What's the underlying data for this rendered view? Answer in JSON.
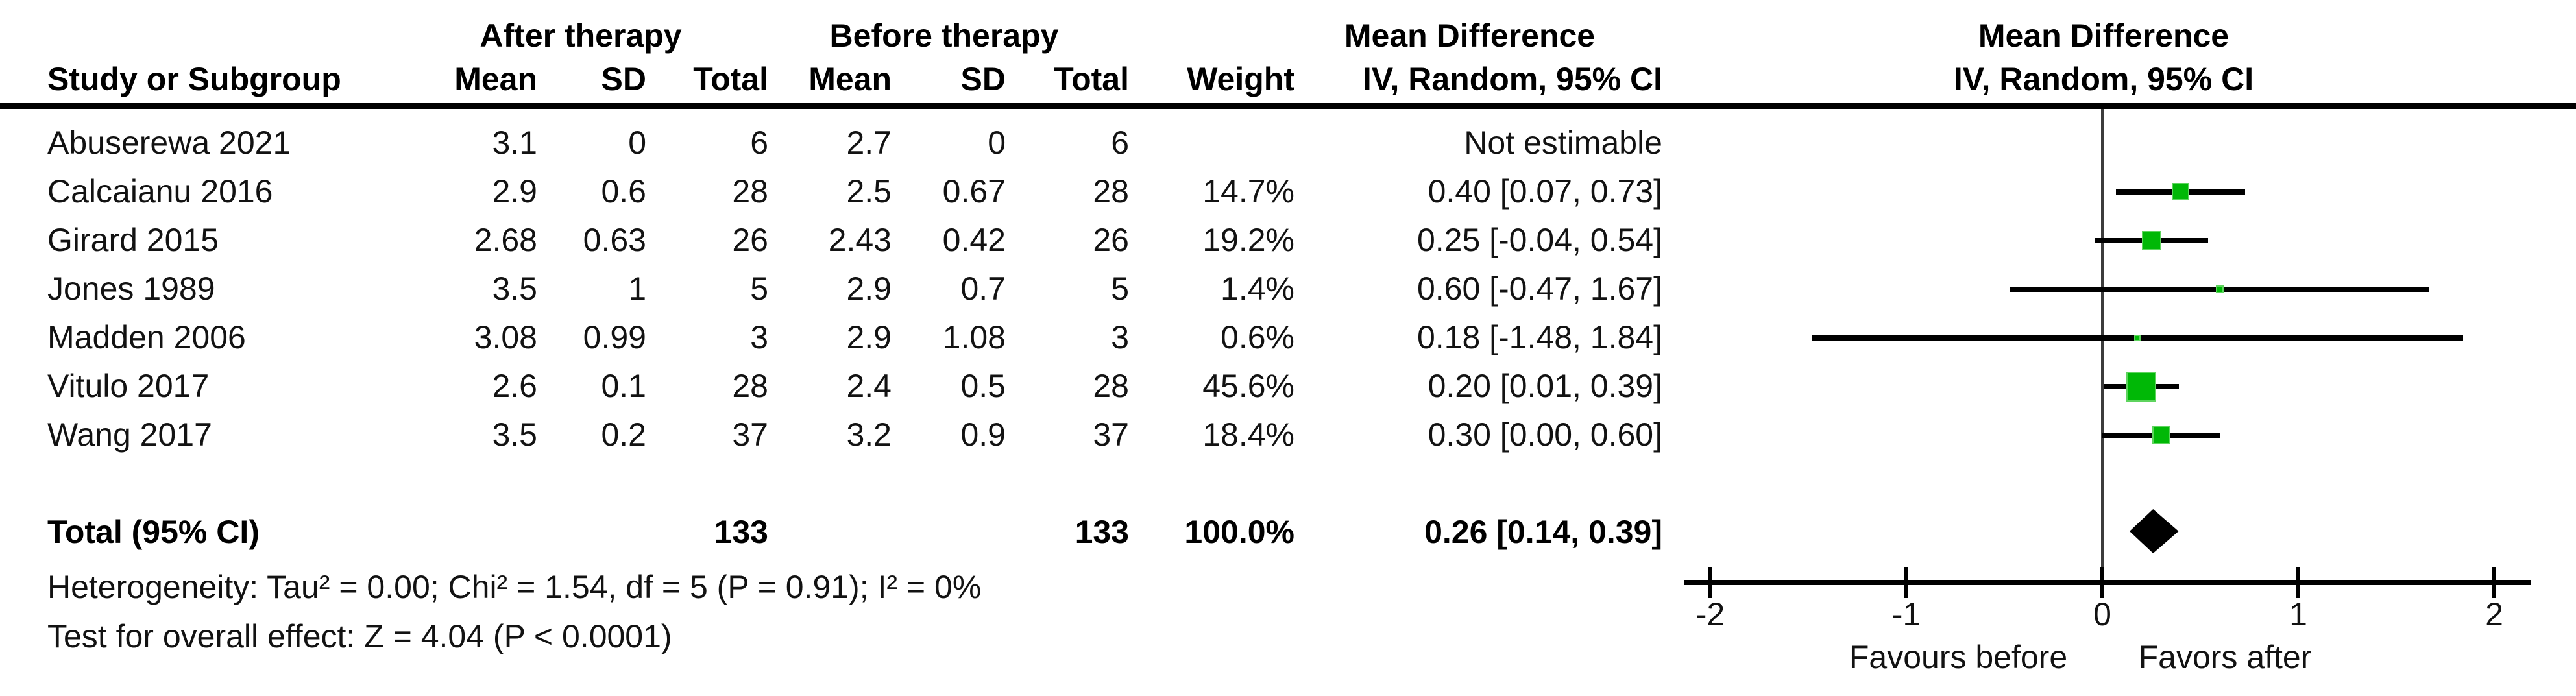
{
  "header": {
    "study_col": "Study or Subgroup",
    "group_after": "After therapy",
    "group_before": "Before therapy",
    "md_col_title": "Mean Difference",
    "md_col_sub": "IV, Random, 95% CI",
    "plot_title": "Mean Difference",
    "plot_sub": "IV, Random, 95% CI",
    "sub_cols": [
      "Mean",
      "SD",
      "Total",
      "Mean",
      "SD",
      "Total",
      "Weight"
    ]
  },
  "studies": [
    {
      "name": "Abuserewa 2021",
      "after_mean": "3.1",
      "after_sd": "0",
      "after_total": "6",
      "before_mean": "2.7",
      "before_sd": "0",
      "before_total": "6",
      "weight": "",
      "ci_text": "Not estimable",
      "estimable": false,
      "md": null,
      "lo": null,
      "hi": null,
      "marker_size": 0
    },
    {
      "name": "Calcaianu 2016",
      "after_mean": "2.9",
      "after_sd": "0.6",
      "after_total": "28",
      "before_mean": "2.5",
      "before_sd": "0.67",
      "before_total": "28",
      "weight": "14.7%",
      "ci_text": "0.40 [0.07, 0.73]",
      "estimable": true,
      "md": 0.4,
      "lo": 0.07,
      "hi": 0.73,
      "marker_size": 27
    },
    {
      "name": "Girard 2015",
      "after_mean": "2.68",
      "after_sd": "0.63",
      "after_total": "26",
      "before_mean": "2.43",
      "before_sd": "0.42",
      "before_total": "26",
      "weight": "19.2%",
      "ci_text": "0.25 [-0.04, 0.54]",
      "estimable": true,
      "md": 0.25,
      "lo": -0.04,
      "hi": 0.54,
      "marker_size": 30
    },
    {
      "name": "Jones 1989",
      "after_mean": "3.5",
      "after_sd": "1",
      "after_total": "5",
      "before_mean": "2.9",
      "before_sd": "0.7",
      "before_total": "5",
      "weight": "1.4%",
      "ci_text": "0.60 [-0.47, 1.67]",
      "estimable": true,
      "md": 0.6,
      "lo": -0.47,
      "hi": 1.67,
      "marker_size": 12
    },
    {
      "name": "Madden 2006",
      "after_mean": "3.08",
      "after_sd": "0.99",
      "after_total": "3",
      "before_mean": "2.9",
      "before_sd": "1.08",
      "before_total": "3",
      "weight": "0.6%",
      "ci_text": "0.18 [-1.48, 1.84]",
      "estimable": true,
      "md": 0.18,
      "lo": -1.48,
      "hi": 1.84,
      "marker_size": 10
    },
    {
      "name": "Vitulo 2017",
      "after_mean": "2.6",
      "after_sd": "0.1",
      "after_total": "28",
      "before_mean": "2.4",
      "before_sd": "0.5",
      "before_total": "28",
      "weight": "45.6%",
      "ci_text": "0.20 [0.01, 0.39]",
      "estimable": true,
      "md": 0.2,
      "lo": 0.01,
      "hi": 0.39,
      "marker_size": 46
    },
    {
      "name": "Wang 2017",
      "after_mean": "3.5",
      "after_sd": "0.2",
      "after_total": "37",
      "before_mean": "3.2",
      "before_sd": "0.9",
      "before_total": "37",
      "weight": "18.4%",
      "ci_text": "0.30 [0.00, 0.60]",
      "estimable": true,
      "md": 0.3,
      "lo": 0.0,
      "hi": 0.6,
      "marker_size": 28
    }
  ],
  "total": {
    "label": "Total (95% CI)",
    "after_total": "133",
    "before_total": "133",
    "weight": "100.0%",
    "ci_text": "0.26 [0.14, 0.39]",
    "md": 0.26,
    "lo": 0.14,
    "hi": 0.39
  },
  "footer": {
    "heterogeneity": "Heterogeneity: Tau² = 0.00; Chi² = 1.54, df = 5 (P = 0.91); I² = 0%",
    "overall_effect": "Test for overall effect: Z = 4.04 (P < 0.0001)"
  },
  "axis": {
    "min": -2,
    "max": 2,
    "ticks": [
      "-2",
      "-1",
      "0",
      "1",
      "2"
    ],
    "favours_left": "Favours before",
    "favours_right": "Favors after"
  },
  "colors": {
    "square_fill": "#00b806",
    "square_edge": "#5ed45e",
    "diamond": "#000000",
    "ci_line": "#000000",
    "zero_line": "#3c3c3c",
    "text": "#121212"
  },
  "chart_data": {
    "type": "scatter",
    "variant": "forest-plot-meta-analysis",
    "title": "Mean Difference, IV, Random, 95% CI",
    "xlabel_left": "Favours before",
    "xlabel_right": "Favors after",
    "xlim": [
      -2,
      2
    ],
    "xticks": [
      -2,
      -1,
      0,
      1,
      2
    ],
    "studies": [
      "Abuserewa 2021",
      "Calcaianu 2016",
      "Girard 2015",
      "Jones 1989",
      "Madden 2006",
      "Vitulo 2017",
      "Wang 2017"
    ],
    "mean_difference": [
      null,
      0.4,
      0.25,
      0.6,
      0.18,
      0.2,
      0.3
    ],
    "ci_low": [
      null,
      0.07,
      -0.04,
      -0.47,
      -1.48,
      0.01,
      0.0
    ],
    "ci_high": [
      null,
      0.73,
      0.54,
      1.67,
      1.84,
      0.39,
      0.6
    ],
    "weights_pct": [
      null,
      14.7,
      19.2,
      1.4,
      0.6,
      45.6,
      18.4
    ],
    "pooled": {
      "md": 0.26,
      "ci_low": 0.14,
      "ci_high": 0.39,
      "total_after": 133,
      "total_before": 133
    },
    "heterogeneity": {
      "tau2": 0.0,
      "chi2": 1.54,
      "df": 5,
      "p": 0.91,
      "i2_pct": 0
    },
    "overall_effect": {
      "z": 4.04,
      "p": "< 0.0001"
    }
  }
}
